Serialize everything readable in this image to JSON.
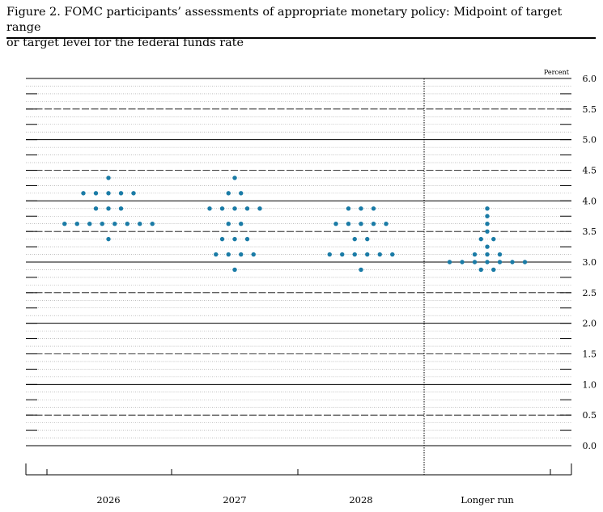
{
  "figure": {
    "title_line1": "Figure 2. FOMC participants’ assessments of appropriate monetary policy: Midpoint of target range",
    "title_line2": "or target level for the federal funds rate"
  },
  "chart_data": {
    "type": "scatter",
    "unit_label": "Percent",
    "ylim": [
      0,
      6
    ],
    "y_ticks": [
      "0.0",
      "0.5",
      "1.0",
      "1.5",
      "2.0",
      "2.5",
      "3.0",
      "3.5",
      "4.0",
      "4.5",
      "5.0",
      "5.5",
      "6.0"
    ],
    "y_tick_values": [
      0,
      0.5,
      1,
      1.5,
      2,
      2.5,
      3,
      3.5,
      4,
      4.5,
      5,
      5.5,
      6
    ],
    "categories": [
      "2026",
      "2027",
      "2028",
      "Longer run"
    ],
    "dot_color": "#1a7ba6",
    "grid": true,
    "groups": [
      {
        "category": "2026",
        "dots": [
          {
            "y": 4.375,
            "count": 1
          },
          {
            "y": 4.125,
            "count": 5
          },
          {
            "y": 3.875,
            "count": 3
          },
          {
            "y": 3.625,
            "count": 8
          },
          {
            "y": 3.375,
            "count": 1
          }
        ]
      },
      {
        "category": "2027",
        "dots": [
          {
            "y": 4.375,
            "count": 1
          },
          {
            "y": 4.125,
            "count": 2
          },
          {
            "y": 3.875,
            "count": 5
          },
          {
            "y": 3.625,
            "count": 2
          },
          {
            "y": 3.375,
            "count": 3
          },
          {
            "y": 3.125,
            "count": 4
          },
          {
            "y": 2.875,
            "count": 1
          }
        ]
      },
      {
        "category": "2028",
        "dots": [
          {
            "y": 3.875,
            "count": 3
          },
          {
            "y": 3.625,
            "count": 5
          },
          {
            "y": 3.375,
            "count": 2
          },
          {
            "y": 3.125,
            "count": 6
          },
          {
            "y": 2.875,
            "count": 1
          }
        ]
      },
      {
        "category": "Longer run",
        "dots": [
          {
            "y": 3.875,
            "count": 1
          },
          {
            "y": 3.75,
            "count": 1
          },
          {
            "y": 3.625,
            "count": 1
          },
          {
            "y": 3.5,
            "count": 1
          },
          {
            "y": 3.375,
            "count": 2
          },
          {
            "y": 3.25,
            "count": 1
          },
          {
            "y": 3.125,
            "count": 3
          },
          {
            "y": 3.0,
            "count": 7
          },
          {
            "y": 2.875,
            "count": 2
          }
        ]
      }
    ]
  }
}
